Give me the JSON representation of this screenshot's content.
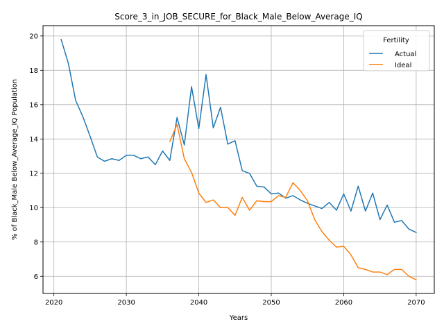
{
  "chart_data": {
    "type": "line",
    "title": "Score_3_in_JOB_SECURE_for_Black_Male_Below_Average_IQ",
    "xlabel": "Years",
    "ylabel": "% of Black_Male Below_Average_IQ Population",
    "xlim": [
      2018.5,
      2072.5
    ],
    "ylim": [
      5.0,
      20.6
    ],
    "xticks": [
      2020,
      2030,
      2040,
      2050,
      2060,
      2070
    ],
    "yticks": [
      6,
      8,
      10,
      12,
      14,
      16,
      18,
      20
    ],
    "grid": true,
    "legend": {
      "title": "Fertility",
      "position": "top-right"
    },
    "series": [
      {
        "name": "Actual",
        "color": "#1f77b4",
        "x": [
          2021,
          2022,
          2023,
          2024,
          2025,
          2026,
          2027,
          2028,
          2029,
          2030,
          2031,
          2032,
          2033,
          2034,
          2035,
          2036,
          2037,
          2038,
          2039,
          2040,
          2041,
          2042,
          2043,
          2044,
          2045,
          2046,
          2047,
          2048,
          2049,
          2050,
          2051,
          2052,
          2053,
          2054,
          2055,
          2056,
          2057,
          2058,
          2059,
          2060,
          2061,
          2062,
          2063,
          2064,
          2065,
          2066,
          2067,
          2068,
          2069,
          2070
        ],
        "values": [
          19.8,
          18.4,
          16.25,
          15.3,
          14.15,
          12.95,
          12.7,
          12.85,
          12.75,
          13.05,
          13.05,
          12.85,
          12.95,
          12.5,
          13.3,
          12.75,
          15.25,
          13.65,
          17.05,
          14.6,
          17.75,
          14.65,
          15.85,
          13.7,
          13.9,
          12.15,
          12.0,
          11.25,
          11.2,
          10.8,
          10.85,
          10.55,
          10.7,
          10.45,
          10.25,
          10.1,
          9.95,
          10.3,
          9.85,
          10.8,
          9.8,
          11.25,
          9.8,
          10.85,
          9.3,
          10.15,
          9.15,
          9.25,
          8.75,
          8.55
        ]
      },
      {
        "name": "Ideal",
        "color": "#ff7f0e",
        "x": [
          2036,
          2037,
          2038,
          2039,
          2040,
          2041,
          2042,
          2043,
          2044,
          2045,
          2046,
          2047,
          2048,
          2049,
          2050,
          2051,
          2052,
          2053,
          2054,
          2055,
          2056,
          2057,
          2058,
          2059,
          2060,
          2061,
          2062,
          2063,
          2064,
          2065,
          2066,
          2067,
          2068,
          2069,
          2070
        ],
        "values": [
          13.85,
          14.85,
          12.85,
          12.05,
          10.85,
          10.3,
          10.45,
          10.0,
          10.0,
          9.55,
          10.6,
          9.85,
          10.4,
          10.35,
          10.35,
          10.7,
          10.6,
          11.45,
          11.0,
          10.4,
          9.3,
          8.6,
          8.1,
          7.7,
          7.75,
          7.25,
          6.5,
          6.4,
          6.25,
          6.25,
          6.1,
          6.4,
          6.4,
          6.0,
          5.8
        ]
      }
    ]
  }
}
